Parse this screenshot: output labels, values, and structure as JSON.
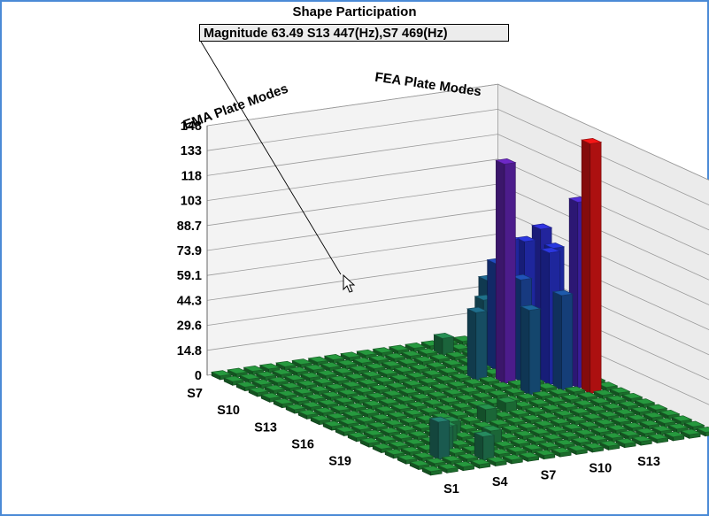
{
  "chart_data": {
    "type": "bar3d",
    "title": "Shape Participation",
    "readout": "Magnitude 63.49 S13 447(Hz),S7 469(Hz)",
    "row_axis_label": "EMA Plate Modes",
    "col_axis_label": "FEA Plate Modes",
    "z_ticks": [
      "0",
      "14.8",
      "29.6",
      "44.3",
      "59.1",
      "73.9",
      "88.7",
      "103",
      "118",
      "133",
      "148"
    ],
    "zlim": [
      0,
      148
    ],
    "row_tick_labels": [
      "S7",
      "S10",
      "S13",
      "S16",
      "S19"
    ],
    "col_tick_labels": [
      "S1",
      "S4",
      "S7",
      "S10",
      "S13"
    ],
    "bars": [
      {
        "row": 0,
        "col": 16,
        "value": 10
      },
      {
        "row": 1,
        "col": 16,
        "value": 13
      },
      {
        "row": 2,
        "col": 16,
        "value": 23
      },
      {
        "row": 3,
        "col": 16,
        "value": 60
      },
      {
        "row": 5,
        "col": 16,
        "value": 84
      },
      {
        "row": 6,
        "col": 16,
        "value": 76
      },
      {
        "row": 8,
        "col": 16,
        "value": 110
      },
      {
        "row": 9,
        "col": 16,
        "value": 148
      },
      {
        "row": 2,
        "col": 15,
        "value": 45
      },
      {
        "row": 3,
        "col": 15,
        "value": 50
      },
      {
        "row": 4,
        "col": 15,
        "value": 56
      },
      {
        "row": 5,
        "col": 15,
        "value": 78
      },
      {
        "row": 7,
        "col": 15,
        "value": 78
      },
      {
        "row": 8,
        "col": 15,
        "value": 56
      },
      {
        "row": 4,
        "col": 14,
        "value": 63
      },
      {
        "row": 5,
        "col": 14,
        "value": 80
      },
      {
        "row": 3,
        "col": 14,
        "value": 38
      },
      {
        "row": 6,
        "col": 14,
        "value": 60
      },
      {
        "row": 6,
        "col": 13,
        "value": 130
      },
      {
        "row": 8,
        "col": 13,
        "value": 50
      },
      {
        "row": 5,
        "col": 12,
        "value": 40
      },
      {
        "row": 1,
        "col": 13,
        "value": 10
      },
      {
        "row": 15,
        "col": 2,
        "value": 22
      },
      {
        "row": 14,
        "col": 3,
        "value": 14
      },
      {
        "row": 13,
        "col": 4,
        "value": 10
      },
      {
        "row": 16,
        "col": 4,
        "value": 14
      },
      {
        "row": 12,
        "col": 5,
        "value": 8
      },
      {
        "row": 14,
        "col": 6,
        "value": 8
      },
      {
        "row": 11,
        "col": 8,
        "value": 8
      },
      {
        "row": 10,
        "col": 10,
        "value": 6
      }
    ]
  }
}
